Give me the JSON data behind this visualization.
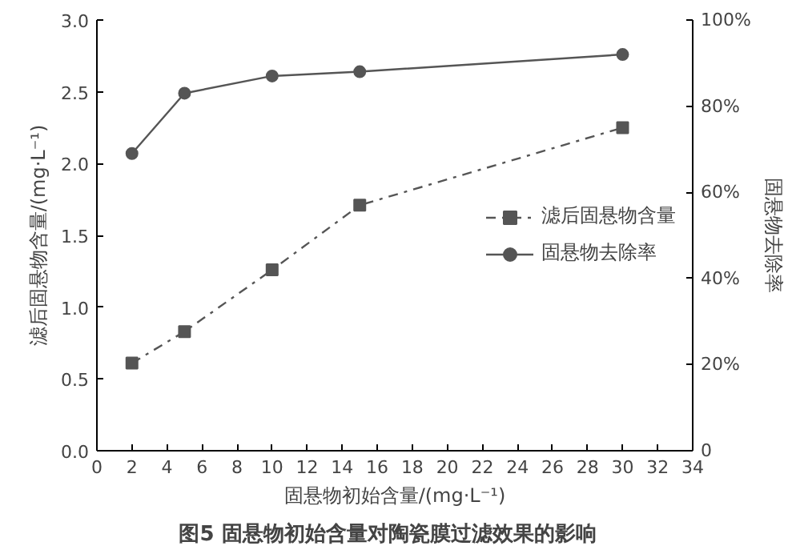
{
  "chart_data": {
    "type": "line",
    "title": "图5   固悬物初始含量对陶瓷膜过滤效果的影响",
    "xlabel": "固悬物初始含量/(mg·L⁻¹)",
    "ylabel": "滤后固悬物含量/(mg·L⁻¹)",
    "y2label": "固悬物去除率",
    "x": [
      2,
      5,
      10,
      15,
      30
    ],
    "series": [
      {
        "name": "滤后固悬物含量",
        "color": "#555555",
        "values": [
          0.61,
          0.83,
          1.26,
          1.71,
          2.25
        ],
        "marker": "square",
        "line_style": "dashdot"
      },
      {
        "name": "固悬物去除率",
        "color": "#555555",
        "values": [
          69,
          83,
          87,
          88,
          92
        ],
        "marker": "circle",
        "line_style": "solid",
        "axis": "y2"
      }
    ],
    "xlim": [
      0,
      34
    ],
    "xticks": [
      0,
      2,
      4,
      6,
      8,
      10,
      12,
      14,
      16,
      18,
      20,
      22,
      24,
      26,
      28,
      30,
      32,
      34
    ],
    "ylim": [
      0,
      3
    ],
    "yticks": [
      {
        "value": 0,
        "label": "0.0"
      },
      {
        "value": 0.5,
        "label": "0.5"
      },
      {
        "value": 1,
        "label": "1.0"
      },
      {
        "value": 1.5,
        "label": "1.5"
      },
      {
        "value": 2,
        "label": "2.0"
      },
      {
        "value": 2.5,
        "label": "2.5"
      },
      {
        "value": 3,
        "label": "3.0"
      }
    ],
    "y2lim": [
      0,
      100
    ],
    "y2ticks": [
      0,
      {
        "value": 20,
        "label": "20%"
      },
      {
        "value": 40,
        "label": "40%"
      },
      {
        "value": 60,
        "label": "60%"
      },
      {
        "value": 80,
        "label": "80%"
      },
      {
        "value": 100,
        "label": "100%"
      }
    ],
    "grid": false,
    "legend": "right"
  }
}
